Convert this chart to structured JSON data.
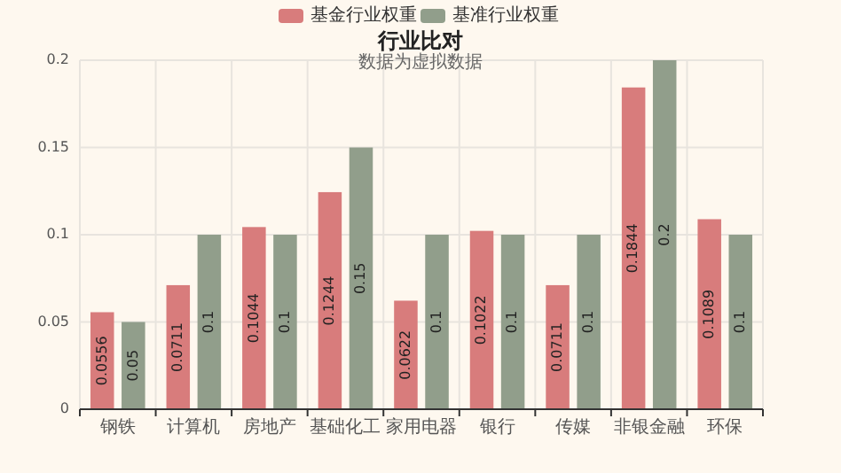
{
  "chart_data": {
    "type": "bar",
    "title": "行业比对",
    "subtitle": "数据为虚拟数据",
    "categories": [
      "钢铁",
      "计算机",
      "房地产",
      "基础化工",
      "家用电器",
      "银行",
      "传媒",
      "非银金融",
      "环保"
    ],
    "series": [
      {
        "name": "基金行业权重",
        "color": "#d87c7c",
        "values": [
          0.0556,
          0.0711,
          0.1044,
          0.1244,
          0.0622,
          0.1022,
          0.0711,
          0.1844,
          0.1089
        ]
      },
      {
        "name": "基准行业权重",
        "color": "#919e8b",
        "values": [
          0.05,
          0.1,
          0.1,
          0.15,
          0.1,
          0.1,
          0.1,
          0.2,
          0.1
        ]
      }
    ],
    "ylim": [
      0,
      0.2
    ],
    "yticks": [
      0,
      0.05,
      0.1,
      0.15,
      0.2
    ],
    "grid": true,
    "legend": "top",
    "data_labels": true
  }
}
